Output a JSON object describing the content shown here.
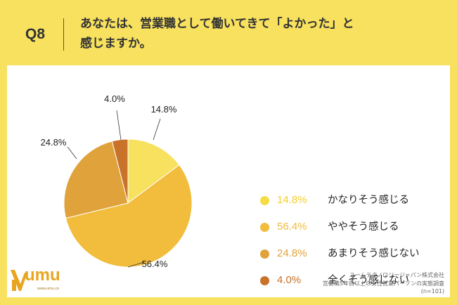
{
  "header": {
    "question_number": "Q8",
    "question_line1": "あなたは、営業職として働いてきて「よかった」と",
    "question_line2": "感じますか。"
  },
  "chart_data": {
    "type": "pie",
    "categories": [
      "かなりそう感じる",
      "ややそう感じる",
      "あまりそう感じない",
      "全くそう感じない"
    ],
    "values": [
      14.8,
      56.4,
      24.8,
      4.0
    ],
    "labels": [
      "14.8%",
      "56.4%",
      "24.8%",
      "4.0%"
    ],
    "colors": [
      "#f7e15f",
      "#f2bc3c",
      "#e0a23a",
      "#c8722a"
    ],
    "legend_text_colors": [
      "#f2cf2c",
      "#f2bc3c",
      "#e0a23a",
      "#c8722a"
    ],
    "start_angle_deg": 0,
    "direction": "clockwise",
    "legend": "right"
  },
  "logo": {
    "text": "umu",
    "url": "www.umu.co"
  },
  "source": {
    "line1": "ユームテクノロジージャパン株式会社",
    "line2": "営業職5年目以上の女性営業パーソンの実態調査",
    "line3": "(n=101)"
  }
}
